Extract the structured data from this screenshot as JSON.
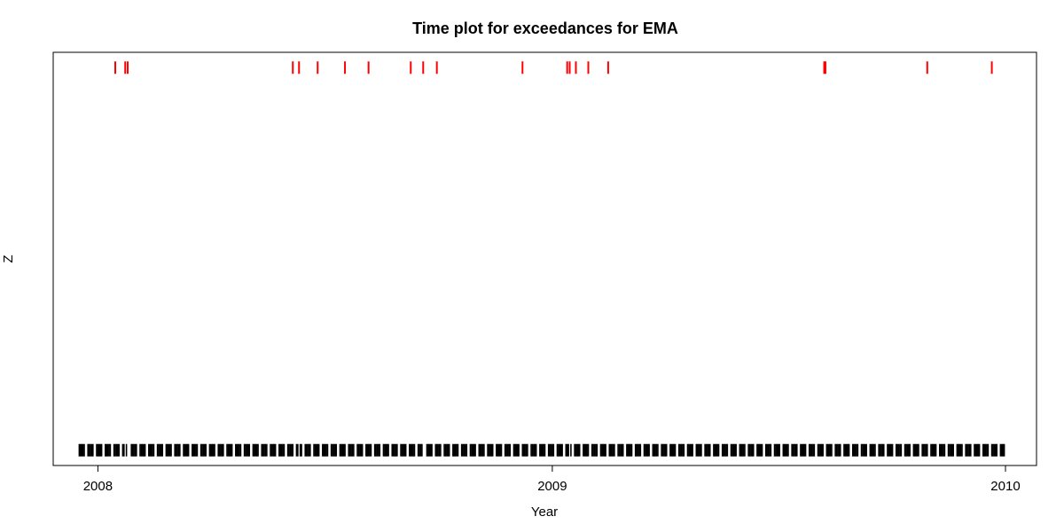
{
  "chart_data": {
    "type": "scatter",
    "title": "Time plot for exceedances for EMA",
    "xlabel": "Year",
    "ylabel": "Z",
    "xlim": [
      "2007-11-26",
      "2010-01-26"
    ],
    "ylim": [
      -0.04,
      1.04
    ],
    "x_ticks": [
      "2008",
      "2009",
      "2010"
    ],
    "grid": false,
    "legend": "none",
    "colors": {
      "exceedance": "#ff0000",
      "non_exceedance": "#000000",
      "frame": "#000000"
    },
    "series": [
      {
        "values_y": 1,
        "dates": [
          "2008-01-15",
          "2008-01-23",
          "2008-01-25",
          "2008-06-06",
          "2008-06-11",
          "2008-06-26",
          "2008-07-18",
          "2008-08-06",
          "2008-09-09",
          "2008-09-19",
          "2008-09-30",
          "2008-12-08",
          "2009-01-13",
          "2009-01-15",
          "2009-01-20",
          "2009-01-30",
          "2009-02-15",
          "2009-08-08",
          "2009-08-09",
          "2009-10-30",
          "2009-12-21"
        ]
      },
      {
        "values_y": 0,
        "range": [
          "2007-12-17",
          "2009-12-31"
        ],
        "frequency": "business days",
        "missing_dates": [
          "2008-01-23",
          "2008-01-25",
          "2008-06-11",
          "2008-09-19",
          "2009-01-15",
          "2009-08-09"
        ]
      }
    ]
  }
}
